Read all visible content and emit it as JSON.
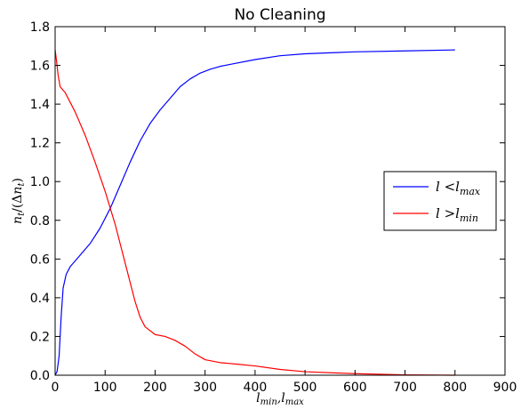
{
  "chart_data": {
    "type": "line",
    "title": "No Cleaning",
    "xlabel": "l_min,l_max",
    "ylabel": "n_t/(Δn_t)",
    "xlim": [
      0,
      900
    ],
    "ylim": [
      0,
      1.8
    ],
    "xticks": [
      0,
      100,
      200,
      300,
      400,
      500,
      600,
      700,
      800,
      900
    ],
    "yticks": [
      0.0,
      0.2,
      0.4,
      0.6,
      0.8,
      1.0,
      1.2,
      1.4,
      1.6,
      1.8
    ],
    "xtick_labels": [
      "0",
      "100",
      "200",
      "300",
      "400",
      "500",
      "600",
      "700",
      "800",
      "900"
    ],
    "ytick_labels": [
      "0.0",
      "0.2",
      "0.4",
      "0.6",
      "0.8",
      "1.0",
      "1.2",
      "1.4",
      "1.6",
      "1.8"
    ],
    "grid": false,
    "legend_position": "right",
    "series": [
      {
        "name": "l <l_max",
        "color": "#0000ff",
        "x": [
          0,
          4,
          8,
          12,
          16,
          22,
          30,
          50,
          70,
          90,
          110,
          130,
          150,
          170,
          190,
          210,
          230,
          250,
          270,
          290,
          310,
          330,
          350,
          400,
          450,
          500,
          550,
          600,
          700,
          800
        ],
        "y": [
          0.0,
          0.02,
          0.1,
          0.3,
          0.45,
          0.52,
          0.56,
          0.62,
          0.68,
          0.76,
          0.86,
          0.98,
          1.1,
          1.21,
          1.3,
          1.37,
          1.43,
          1.49,
          1.53,
          1.56,
          1.58,
          1.595,
          1.605,
          1.63,
          1.65,
          1.66,
          1.665,
          1.67,
          1.675,
          1.68
        ]
      },
      {
        "name": "l >l_min",
        "color": "#ff0000",
        "x": [
          0,
          3,
          6,
          10,
          20,
          40,
          60,
          80,
          100,
          120,
          140,
          160,
          170,
          180,
          200,
          220,
          240,
          260,
          280,
          300,
          330,
          360,
          400,
          450,
          500,
          600,
          700,
          800
        ],
        "y": [
          1.68,
          1.62,
          1.55,
          1.49,
          1.46,
          1.36,
          1.24,
          1.1,
          0.95,
          0.78,
          0.58,
          0.38,
          0.3,
          0.25,
          0.21,
          0.2,
          0.18,
          0.15,
          0.11,
          0.08,
          0.065,
          0.058,
          0.048,
          0.03,
          0.018,
          0.008,
          0.002,
          0.0
        ]
      }
    ]
  }
}
